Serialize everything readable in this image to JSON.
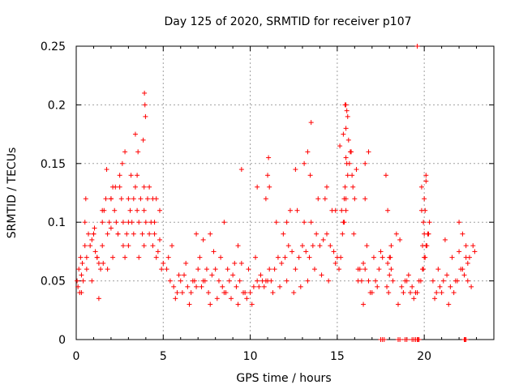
{
  "chart_data": {
    "type": "scatter",
    "title": "Day 125 of 2020, SRMTID for receiver p107",
    "xlabel": "GPS time / hours",
    "ylabel": "SRMTID / TECUs",
    "xlim": [
      0,
      24
    ],
    "ylim": [
      0,
      0.25
    ],
    "xticks": [
      0,
      5,
      10,
      15,
      20
    ],
    "yticks": [
      0,
      0.05,
      0.1,
      0.15,
      0.2,
      0.25
    ],
    "xtick_labels": [
      "0",
      "5",
      "10",
      "15",
      "20"
    ],
    "ytick_labels": [
      "0",
      "0.05",
      "0.1",
      "0.15",
      "0.2",
      "0.25"
    ],
    "grid": true,
    "marker": "+",
    "color": "#ff0000",
    "series": [
      {
        "name": "SRMTID",
        "x": [
          0.05,
          0.1,
          0.15,
          0.2,
          0.25,
          0.3,
          0.35,
          0.4,
          0.5,
          0.6,
          0.7,
          0.8,
          0.9,
          1.0,
          1.1,
          1.2,
          1.3,
          1.4,
          1.5,
          1.6,
          1.7,
          1.8,
          1.9,
          2.0,
          2.1,
          2.2,
          2.3,
          2.4,
          2.5,
          2.6,
          2.7,
          2.8,
          2.9,
          3.0,
          3.1,
          3.2,
          3.3,
          3.4,
          3.5,
          3.6,
          3.7,
          3.8,
          3.9,
          4.0,
          4.1,
          4.2,
          4.3,
          4.4,
          4.5,
          4.6,
          4.7,
          4.8,
          4.9,
          5.0,
          0.3,
          0.6,
          0.9,
          1.2,
          1.5,
          1.8,
          2.1,
          2.4,
          2.7,
          3.0,
          3.3,
          3.6,
          3.9,
          4.2,
          4.5,
          4.8,
          0.5,
          1.0,
          1.5,
          2.0,
          2.5,
          3.0,
          3.5,
          3.9,
          4.4,
          0.55,
          1.05,
          1.75,
          2.25,
          2.65,
          3.15,
          3.55,
          3.85,
          3.92,
          3.95,
          3.98,
          4.6,
          1.3,
          2.0,
          2.8,
          3.4,
          1.55,
          5.2,
          5.4,
          5.6,
          5.8,
          6.0,
          6.2,
          6.4,
          6.6,
          6.8,
          7.0,
          7.2,
          7.4,
          7.6,
          7.8,
          8.0,
          8.2,
          8.4,
          8.6,
          8.8,
          9.0,
          9.2,
          9.4,
          9.6,
          9.8,
          10.0,
          10.2,
          10.4,
          10.6,
          10.8,
          11.0,
          5.3,
          5.7,
          6.1,
          6.5,
          6.9,
          7.3,
          7.7,
          8.1,
          8.5,
          8.9,
          9.3,
          9.7,
          10.1,
          10.5,
          10.9,
          5.5,
          6.3,
          7.1,
          7.9,
          8.7,
          9.5,
          10.3,
          11.1,
          5.9,
          6.7,
          7.5,
          8.3,
          9.1,
          9.9,
          10.7,
          6.9,
          7.3,
          7.7,
          8.5,
          9.3,
          9.5,
          10.4,
          10.9,
          11.0,
          11.05,
          11.2,
          11.4,
          11.6,
          11.8,
          12.0,
          12.2,
          12.4,
          12.6,
          12.8,
          13.0,
          13.2,
          13.4,
          13.6,
          13.8,
          14.0,
          14.2,
          14.4,
          14.6,
          14.8,
          15.0,
          11.3,
          11.7,
          12.1,
          12.5,
          12.9,
          13.3,
          13.7,
          14.1,
          14.5,
          14.9,
          11.5,
          12.3,
          13.1,
          13.9,
          14.7,
          11.9,
          12.7,
          13.5,
          14.3,
          11.1,
          12.6,
          13.1,
          13.3,
          13.5,
          13.45,
          14.4,
          14.9,
          12.1,
          15.1,
          15.2,
          15.3,
          15.4,
          15.5,
          15.6,
          15.7,
          15.8,
          15.9,
          16.0,
          15.25,
          15.35,
          15.45,
          15.55,
          15.65,
          15.75,
          15.85,
          15.4,
          15.5,
          15.6,
          15.45,
          15.55,
          15.35,
          15.15,
          15.95,
          15.5,
          15.5,
          15.5,
          16.1,
          16.2,
          16.4,
          16.6,
          16.8,
          17.0,
          17.2,
          17.4,
          17.6,
          16.3,
          16.7,
          17.1,
          17.5,
          16.5,
          16.9,
          17.3,
          16.2,
          16.5,
          16.6,
          16.6,
          16.8,
          17.8,
          17.9,
          18.0,
          18.1,
          18.2,
          17.85,
          17.95,
          18.05,
          17.9,
          18.0,
          18.1,
          18.4,
          18.6,
          18.8,
          19.0,
          19.2,
          19.4,
          19.6,
          18.5,
          18.7,
          18.9,
          19.3,
          19.1,
          19.5,
          19.7,
          19.8,
          19.9,
          20.0,
          20.1,
          20.2,
          20.3,
          19.85,
          19.95,
          20.05,
          20.15,
          20.25,
          19.9,
          20.0,
          20.1,
          19.85,
          19.95,
          20.05,
          20.0,
          20.1,
          19.6,
          20.5,
          20.7,
          20.9,
          21.1,
          21.3,
          21.5,
          21.7,
          21.9,
          22.1,
          22.3,
          22.5,
          22.7,
          20.6,
          21.0,
          21.4,
          21.8,
          22.2,
          22.6,
          20.8,
          21.6,
          22.4,
          21.2,
          22.0,
          22.8,
          22.0,
          22.2,
          22.5,
          22.4,
          22.9,
          17.5,
          17.6,
          17.7,
          18.5,
          18.6,
          18.9,
          19.0,
          19.3,
          19.4,
          19.5,
          19.6,
          19.7,
          22.3,
          22.35,
          22.4,
          19.65
        ],
        "y": [
          0.05,
          0.045,
          0.06,
          0.04,
          0.07,
          0.055,
          0.065,
          0.05,
          0.08,
          0.07,
          0.09,
          0.08,
          0.085,
          0.09,
          0.075,
          0.07,
          0.065,
          0.06,
          0.1,
          0.11,
          0.12,
          0.09,
          0.1,
          0.12,
          0.13,
          0.11,
          0.1,
          0.09,
          0.14,
          0.12,
          0.08,
          0.07,
          0.09,
          0.1,
          0.11,
          0.1,
          0.12,
          0.13,
          0.11,
          0.1,
          0.12,
          0.09,
          0.11,
          0.1,
          0.12,
          0.13,
          0.1,
          0.08,
          0.09,
          0.07,
          0.075,
          0.085,
          0.06,
          0.065,
          0.04,
          0.06,
          0.05,
          0.07,
          0.08,
          0.06,
          0.07,
          0.09,
          0.1,
          0.08,
          0.09,
          0.07,
          0.08,
          0.09,
          0.1,
          0.11,
          0.1,
          0.09,
          0.11,
          0.12,
          0.13,
          0.12,
          0.14,
          0.13,
          0.12,
          0.12,
          0.095,
          0.145,
          0.13,
          0.15,
          0.14,
          0.16,
          0.17,
          0.21,
          0.2,
          0.19,
          0.12,
          0.035,
          0.095,
          0.16,
          0.175,
          0.065,
          0.06,
          0.05,
          0.045,
          0.04,
          0.05,
          0.055,
          0.045,
          0.04,
          0.05,
          0.06,
          0.045,
          0.05,
          0.04,
          0.055,
          0.06,
          0.05,
          0.045,
          0.04,
          0.05,
          0.055,
          0.045,
          0.05,
          0.04,
          0.035,
          0.04,
          0.045,
          0.05,
          0.055,
          0.045,
          0.05,
          0.07,
          0.035,
          0.04,
          0.03,
          0.045,
          0.05,
          0.03,
          0.035,
          0.04,
          0.035,
          0.03,
          0.04,
          0.03,
          0.045,
          0.05,
          0.08,
          0.065,
          0.07,
          0.075,
          0.06,
          0.065,
          0.07,
          0.06,
          0.055,
          0.05,
          0.06,
          0.07,
          0.065,
          0.06,
          0.05,
          0.09,
          0.085,
          0.09,
          0.1,
          0.08,
          0.145,
          0.13,
          0.12,
          0.14,
          0.155,
          0.05,
          0.06,
          0.07,
          0.065,
          0.07,
          0.08,
          0.075,
          0.06,
          0.07,
          0.08,
          0.075,
          0.07,
          0.08,
          0.09,
          0.08,
          0.085,
          0.09,
          0.08,
          0.075,
          0.07,
          0.04,
          0.045,
          0.05,
          0.04,
          0.045,
          0.05,
          0.06,
          0.055,
          0.05,
          0.065,
          0.1,
          0.11,
          0.1,
          0.12,
          0.11,
          0.09,
          0.11,
          0.1,
          0.12,
          0.13,
          0.145,
          0.15,
          0.16,
          0.185,
          0.14,
          0.13,
          0.11,
          0.1,
          0.06,
          0.07,
          0.09,
          0.1,
          0.12,
          0.14,
          0.15,
          0.16,
          0.13,
          0.12,
          0.11,
          0.1,
          0.13,
          0.15,
          0.17,
          0.16,
          0.14,
          0.12,
          0.18,
          0.19,
          0.2,
          0.195,
          0.175,
          0.165,
          0.09,
          0.11,
          0.2,
          0.155,
          0.145,
          0.06,
          0.05,
          0.06,
          0.05,
          0.04,
          0.05,
          0.06,
          0.07,
          0.06,
          0.08,
          0.07,
          0.075,
          0.065,
          0.04,
          0.045,
          0.05,
          0.03,
          0.12,
          0.15,
          0.16,
          0.14,
          0.11,
          0.055,
          0.06,
          0.05,
          0.045,
          0.04,
          0.07,
          0.065,
          0.07,
          0.08,
          0.09,
          0.085,
          0.04,
          0.05,
          0.04,
          0.035,
          0.04,
          0.03,
          0.045,
          0.05,
          0.045,
          0.055,
          0.04,
          0.05,
          0.05,
          0.06,
          0.07,
          0.08,
          0.09,
          0.1,
          0.11,
          0.06,
          0.07,
          0.08,
          0.09,
          0.08,
          0.12,
          0.14,
          0.13,
          0.1,
          0.11,
          0.09,
          0.135,
          0.25,
          0.05,
          0.04,
          0.045,
          0.05,
          0.055,
          0.045,
          0.04,
          0.05,
          0.06,
          0.055,
          0.05,
          0.045,
          0.035,
          0.04,
          0.03,
          0.05,
          0.06,
          0.07,
          0.06,
          0.07,
          0.08,
          0.085,
          0.075,
          0.08,
          0.1,
          0.09,
          0.065,
          0.07,
          0.075,
          0.0,
          0.0,
          0.0,
          0.0,
          0.0,
          0.0,
          0.0,
          0.0,
          0.0,
          0.0,
          0.0,
          0.0,
          0.0,
          0.0,
          0.0,
          0.0
        ]
      }
    ]
  }
}
